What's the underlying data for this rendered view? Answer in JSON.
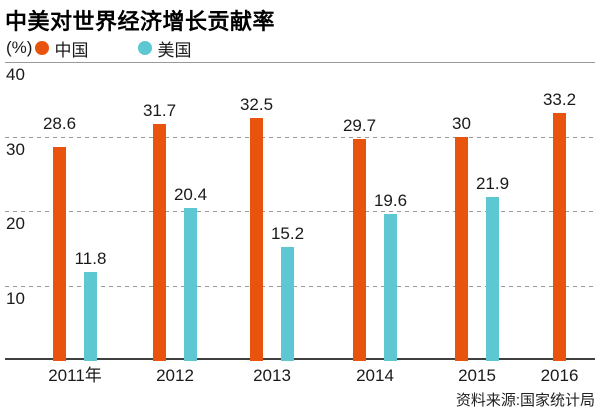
{
  "title": "中美对世界经济增长贡献率",
  "source": "资料来源:国家统计局",
  "legend": {
    "unit": "(%)",
    "items": [
      {
        "label": "中国",
        "color_key": "china"
      },
      {
        "label": "美国",
        "color_key": "us"
      }
    ]
  },
  "colors": {
    "china": "#E8540E",
    "us": "#5DC7D2",
    "gridline": "#999999",
    "baseline": "#404040",
    "text": "#1a1a1a"
  },
  "chart_data": {
    "type": "bar",
    "title": "中美对世界经济增长贡献率",
    "unit": "(%)",
    "categories": [
      "2011年",
      "2012",
      "2013",
      "2014",
      "2015",
      "2016"
    ],
    "series": [
      {
        "name": "中国",
        "color_key": "china",
        "values": [
          28.6,
          31.7,
          32.5,
          29.7,
          30,
          33.2
        ]
      },
      {
        "name": "美国",
        "color_key": "us",
        "values": [
          11.8,
          20.4,
          15.2,
          19.6,
          21.9,
          null
        ]
      }
    ],
    "ylim": [
      0,
      40
    ],
    "yticks": [
      40,
      30,
      20,
      10
    ],
    "grid": "horizontal; solid line at 40, dashed at 30/20/10, solid dark baseline at 0",
    "legend_position": "top-left",
    "value_labels": "above each bar",
    "source": "资料来源:国家统计局"
  }
}
